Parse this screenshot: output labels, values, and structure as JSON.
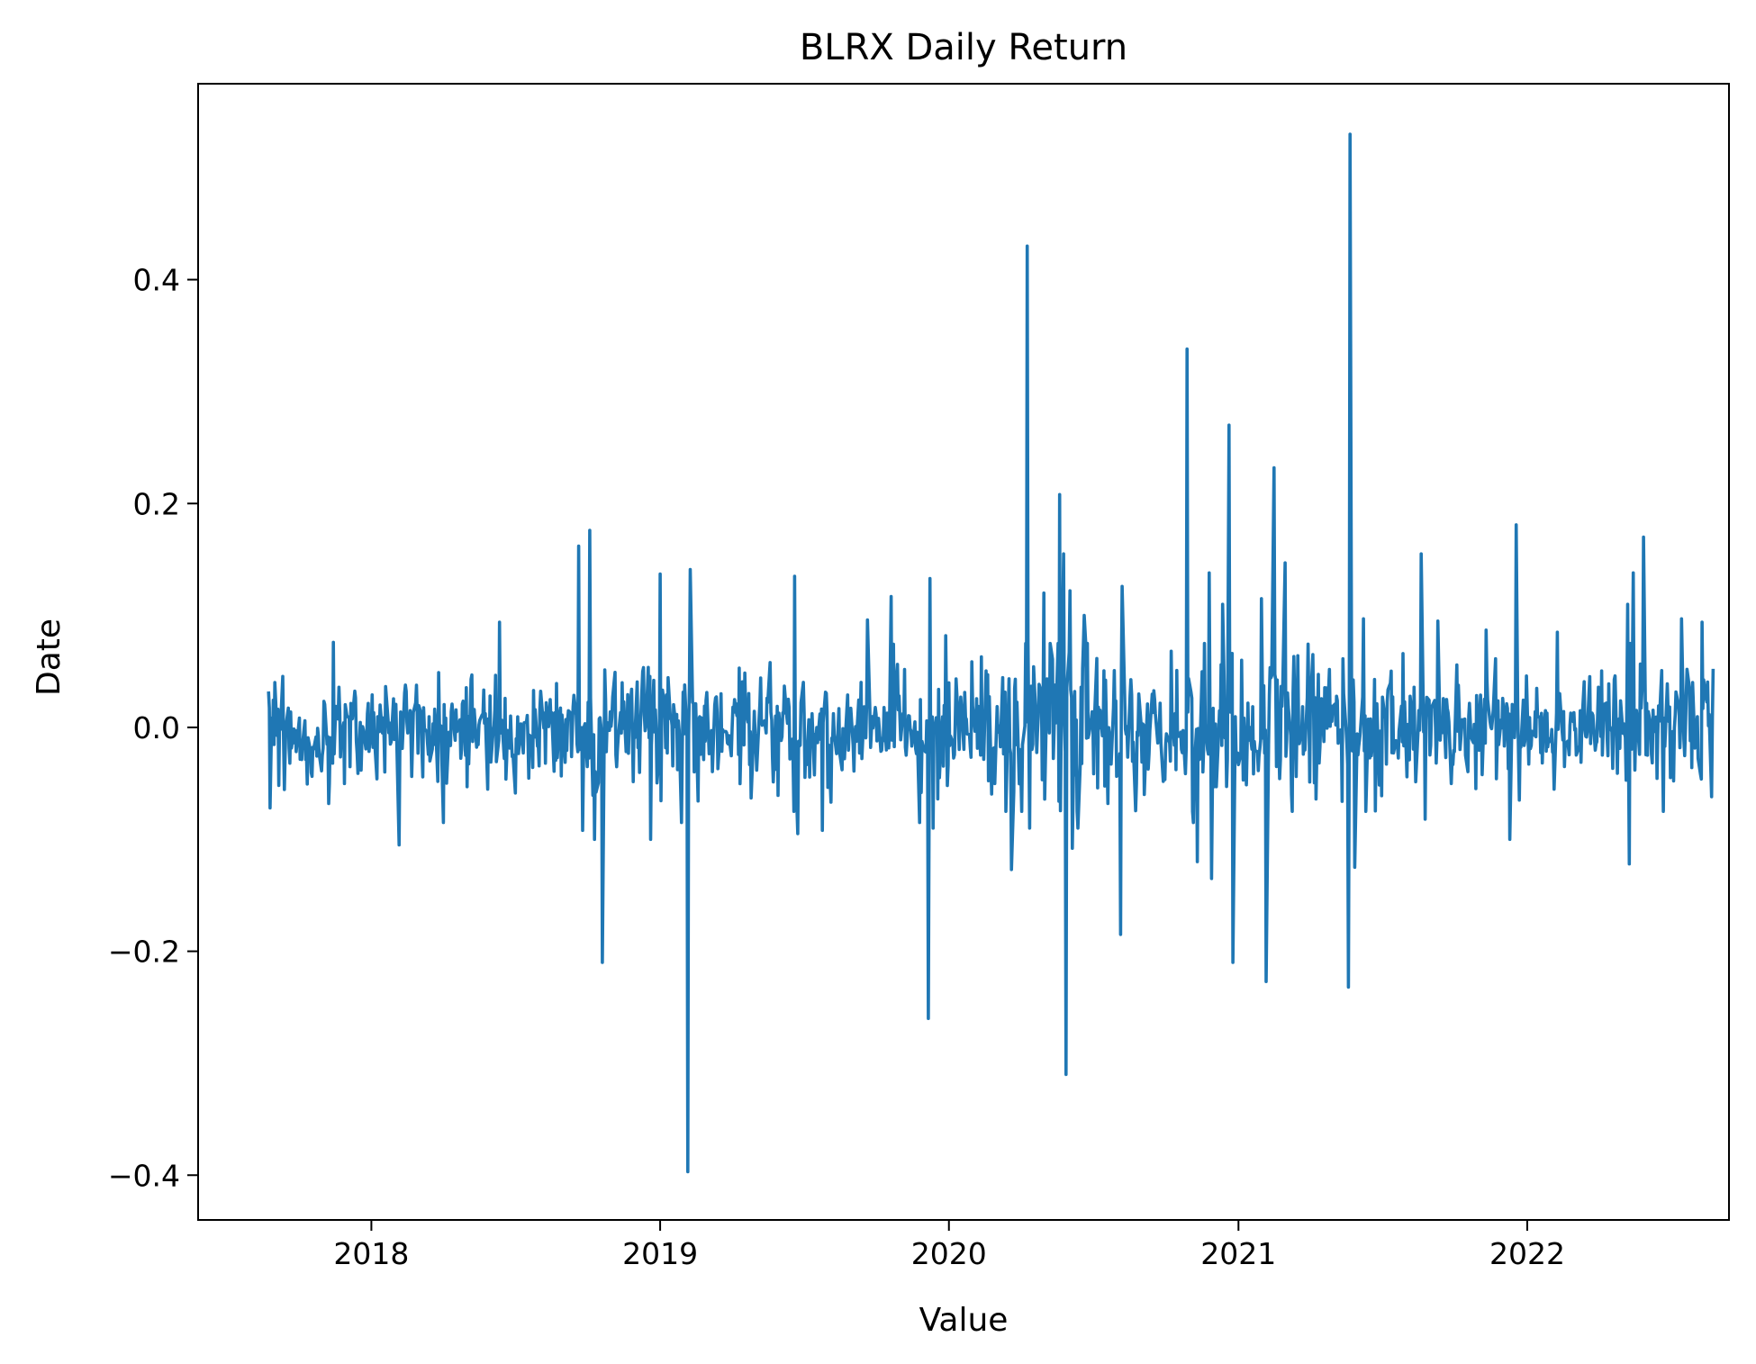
{
  "chart_data": {
    "type": "line",
    "title": "BLRX Daily Return",
    "xlabel": "Value",
    "ylabel": "Date",
    "x_ticks": [
      "2018",
      "2019",
      "2020",
      "2021",
      "2022"
    ],
    "y_ticks": [
      0.4,
      0.2,
      0.0,
      -0.2,
      -0.4
    ],
    "y_tick_labels": [
      "0.4",
      "0.2",
      "0.0",
      "−0.2",
      "−0.4"
    ],
    "xlim": [
      "2017-05-27",
      "2022-09-13"
    ],
    "ylim": [
      -0.44,
      0.575
    ],
    "grid": false,
    "legend": "none",
    "line_color": "#1f77b4",
    "series": [
      {
        "x_start": "2017-08-24",
        "x_end": "2022-08-24",
        "spikes": [
          {
            "x": "2017-08-26",
            "y": -0.072
          },
          {
            "x": "2017-11-08",
            "y": -0.068
          },
          {
            "x": "2017-11-14",
            "y": 0.076
          },
          {
            "x": "2018-02-05",
            "y": -0.105
          },
          {
            "x": "2018-04-02",
            "y": -0.085
          },
          {
            "x": "2018-06-12",
            "y": 0.094
          },
          {
            "x": "2018-09-20",
            "y": 0.162
          },
          {
            "x": "2018-09-25",
            "y": -0.092
          },
          {
            "x": "2018-10-04",
            "y": 0.176
          },
          {
            "x": "2018-10-10",
            "y": -0.1
          },
          {
            "x": "2018-10-20",
            "y": -0.21
          },
          {
            "x": "2018-12-20",
            "y": -0.1
          },
          {
            "x": "2019-01-01",
            "y": 0.137
          },
          {
            "x": "2019-01-28",
            "y": -0.085
          },
          {
            "x": "2019-02-05",
            "y": -0.397
          },
          {
            "x": "2019-02-08",
            "y": 0.141
          },
          {
            "x": "2019-06-20",
            "y": 0.135
          },
          {
            "x": "2019-06-24",
            "y": -0.095
          },
          {
            "x": "2019-07-25",
            "y": -0.092
          },
          {
            "x": "2019-09-20",
            "y": 0.096
          },
          {
            "x": "2019-10-20",
            "y": 0.117
          },
          {
            "x": "2019-11-25",
            "y": -0.085
          },
          {
            "x": "2019-12-06",
            "y": -0.26
          },
          {
            "x": "2019-12-08",
            "y": 0.133
          },
          {
            "x": "2019-12-12",
            "y": -0.09
          },
          {
            "x": "2019-12-28",
            "y": 0.082
          },
          {
            "x": "2020-03-20",
            "y": -0.127
          },
          {
            "x": "2020-04-09",
            "y": 0.43
          },
          {
            "x": "2020-04-12",
            "y": -0.09
          },
          {
            "x": "2020-04-30",
            "y": 0.12
          },
          {
            "x": "2020-05-20",
            "y": 0.208
          },
          {
            "x": "2020-05-25",
            "y": 0.155
          },
          {
            "x": "2020-05-28",
            "y": -0.31
          },
          {
            "x": "2020-06-02",
            "y": 0.122
          },
          {
            "x": "2020-06-05",
            "y": -0.108
          },
          {
            "x": "2020-06-12",
            "y": -0.09
          },
          {
            "x": "2020-06-20",
            "y": 0.1
          },
          {
            "x": "2020-08-05",
            "y": -0.185
          },
          {
            "x": "2020-08-07",
            "y": 0.126
          },
          {
            "x": "2020-10-28",
            "y": 0.338
          },
          {
            "x": "2020-11-05",
            "y": -0.085
          },
          {
            "x": "2020-11-10",
            "y": -0.12
          },
          {
            "x": "2020-11-25",
            "y": 0.138
          },
          {
            "x": "2020-11-28",
            "y": -0.135
          },
          {
            "x": "2020-12-12",
            "y": 0.11
          },
          {
            "x": "2020-12-20",
            "y": 0.27
          },
          {
            "x": "2020-12-25",
            "y": -0.21
          },
          {
            "x": "2021-01-05",
            "y": 0.06
          },
          {
            "x": "2021-01-30",
            "y": 0.115
          },
          {
            "x": "2021-02-05",
            "y": -0.227
          },
          {
            "x": "2021-02-15",
            "y": 0.232
          },
          {
            "x": "2021-03-01",
            "y": 0.147
          },
          {
            "x": "2021-03-10",
            "y": -0.075
          },
          {
            "x": "2021-04-05",
            "y": 0.065
          },
          {
            "x": "2021-05-20",
            "y": -0.232
          },
          {
            "x": "2021-05-22",
            "y": 0.53
          },
          {
            "x": "2021-05-28",
            "y": -0.125
          },
          {
            "x": "2021-06-08",
            "y": 0.097
          },
          {
            "x": "2021-08-20",
            "y": 0.155
          },
          {
            "x": "2021-08-25",
            "y": -0.082
          },
          {
            "x": "2021-09-10",
            "y": 0.095
          },
          {
            "x": "2021-11-10",
            "y": 0.087
          },
          {
            "x": "2021-12-10",
            "y": -0.1
          },
          {
            "x": "2021-12-18",
            "y": 0.181
          },
          {
            "x": "2021-12-22",
            "y": -0.065
          },
          {
            "x": "2022-02-08",
            "y": 0.085
          },
          {
            "x": "2022-05-08",
            "y": 0.11
          },
          {
            "x": "2022-05-10",
            "y": -0.122
          },
          {
            "x": "2022-05-15",
            "y": 0.138
          },
          {
            "x": "2022-05-28",
            "y": 0.17
          },
          {
            "x": "2022-07-15",
            "y": 0.097
          },
          {
            "x": "2022-08-10",
            "y": 0.094
          },
          {
            "x": "2022-08-22",
            "y": -0.062
          }
        ]
      }
    ]
  }
}
